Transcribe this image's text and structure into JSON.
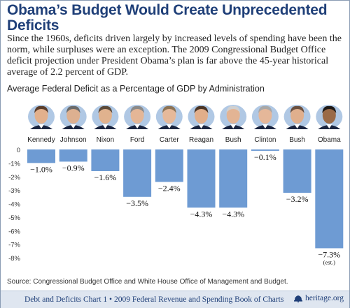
{
  "header": {
    "title": "Obama’s Budget Would Create Unprecedented Deficits",
    "intro": "Since the 1960s, deficits driven largely by increased levels of spending have been the norm, while surpluses were an exception. The 2009 Congressional Budget Office deficit projection under President Obama’s plan is far above the 45-year historical average of 2.2 percent of GDP."
  },
  "chart_data": {
    "type": "bar",
    "title": "Average Federal Deficit as a Percentage of GDP by Administration",
    "categories": [
      "Kennedy",
      "Johnson",
      "Nixon",
      "Ford",
      "Carter",
      "Reagan",
      "Bush",
      "Clinton",
      "Bush",
      "Obama"
    ],
    "values": [
      -1.0,
      -0.9,
      -1.6,
      -3.5,
      -2.4,
      -4.3,
      -4.3,
      -0.1,
      -3.2,
      -7.3
    ],
    "value_labels": [
      "−1.0%",
      "−0.9%",
      "−1.6%",
      "−3.5%",
      "−2.4%",
      "−4.3%",
      "−4.3%",
      "−0.1%",
      "−3.2%",
      "−7.3%"
    ],
    "annotations": [
      {
        "category_index": 9,
        "text": "(est.)"
      }
    ],
    "yticks": [
      "0",
      "-1%",
      "-2%",
      "-3%",
      "-4%",
      "-5%",
      "-6%",
      "-7%",
      "-8%"
    ],
    "ytick_values": [
      0,
      -1,
      -2,
      -3,
      -4,
      -5,
      -6,
      -7,
      -8
    ],
    "ylim": [
      -8,
      0
    ],
    "grid": false,
    "bar_color": "#6e9bd3"
  },
  "source": "Source: Congressional Budget Office and White House Office of Management and Budget.",
  "footer": {
    "text": "Debt and Deficits Chart 1 • 2009 Federal Revenue and Spending Book of Charts",
    "logo_text": "heritage.org"
  },
  "colors": {
    "title": "#1f3f78",
    "footer_bg": "#dfe6f0"
  }
}
